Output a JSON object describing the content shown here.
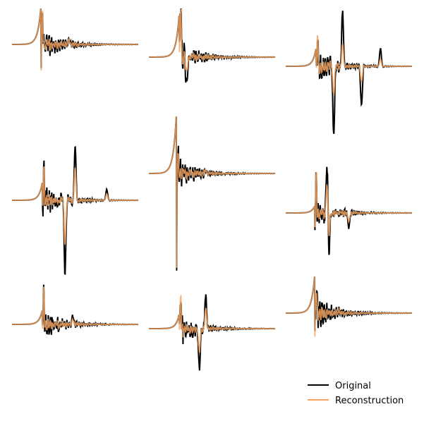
{
  "legend": {
    "entries": [
      {
        "label": "Original",
        "color": "#000000"
      },
      {
        "label": "Reconstruction",
        "color": "#f4a460"
      }
    ],
    "placement": "lower-right"
  },
  "chart_data": {
    "type": "line",
    "layout": "3x3 grid of small multiples",
    "axes_visible": false,
    "grid": false,
    "series_names": [
      "Original",
      "Reconstruction"
    ],
    "panels": [
      {
        "panel": 1,
        "baseline": 0,
        "pre_peak": 0.55,
        "spike_min": -1.25,
        "spike_max": 0.45,
        "late_events": [
          {
            "pos": 0.45,
            "amp": 0.06
          }
        ],
        "recon_fidelity": "high"
      },
      {
        "panel": 2,
        "baseline": 0,
        "pre_peak": 0.6,
        "spike_min": -1.1,
        "spike_max": 0.6,
        "late_events": [
          {
            "pos": 0.3,
            "amp": -0.35
          },
          {
            "pos": 0.25,
            "amp": 0.3
          }
        ],
        "recon_fidelity": "medium"
      },
      {
        "panel": 3,
        "baseline": 0,
        "pre_peak": 0.25,
        "spike_min": -0.75,
        "spike_max": 0.5,
        "late_events": [
          {
            "pos": 0.38,
            "amp": -0.95
          },
          {
            "pos": 0.45,
            "amp": 0.75
          },
          {
            "pos": 0.6,
            "amp": -0.55
          },
          {
            "pos": 0.75,
            "amp": 0.25
          }
        ],
        "recon_fidelity": "low"
      },
      {
        "panel": 4,
        "baseline": 0,
        "pre_peak": 0.25,
        "spike_min": -0.7,
        "spike_max": 0.4,
        "late_events": [
          {
            "pos": 0.42,
            "amp": -1.0
          },
          {
            "pos": 0.5,
            "amp": 0.75
          },
          {
            "pos": 0.75,
            "amp": 0.15
          }
        ],
        "recon_fidelity": "medium"
      },
      {
        "panel": 5,
        "baseline": 0,
        "pre_peak": 0.9,
        "spike_min": -1.4,
        "spike_max": 0.2,
        "late_events": [
          {
            "pos": 0.45,
            "amp": 0.05
          }
        ],
        "recon_fidelity": "high"
      },
      {
        "panel": 6,
        "baseline": 0,
        "pre_peak": 0.1,
        "spike_min": -0.6,
        "spike_max": 0.6,
        "late_events": [
          {
            "pos": 0.33,
            "amp": 0.85
          },
          {
            "pos": 0.34,
            "amp": -0.7
          },
          {
            "pos": 0.5,
            "amp": -0.2
          }
        ],
        "recon_fidelity": "medium"
      },
      {
        "panel": 7,
        "baseline": 0,
        "pre_peak": 0.2,
        "spike_min": -1.2,
        "spike_max": 0.5,
        "late_events": [
          {
            "pos": 0.48,
            "amp": 0.12
          }
        ],
        "recon_fidelity": "medium"
      },
      {
        "panel": 8,
        "baseline": 0,
        "pre_peak": 0.2,
        "spike_min": -1.1,
        "spike_max": 0.55,
        "late_events": [
          {
            "pos": 0.4,
            "amp": -0.55
          },
          {
            "pos": 0.45,
            "amp": 0.45
          }
        ],
        "recon_fidelity": "medium"
      },
      {
        "panel": 9,
        "baseline": 0,
        "pre_peak": 0.55,
        "spike_min": -1.3,
        "spike_max": 0.35,
        "late_events": [
          {
            "pos": 0.42,
            "amp": 0.04
          }
        ],
        "recon_fidelity": "high"
      }
    ]
  }
}
